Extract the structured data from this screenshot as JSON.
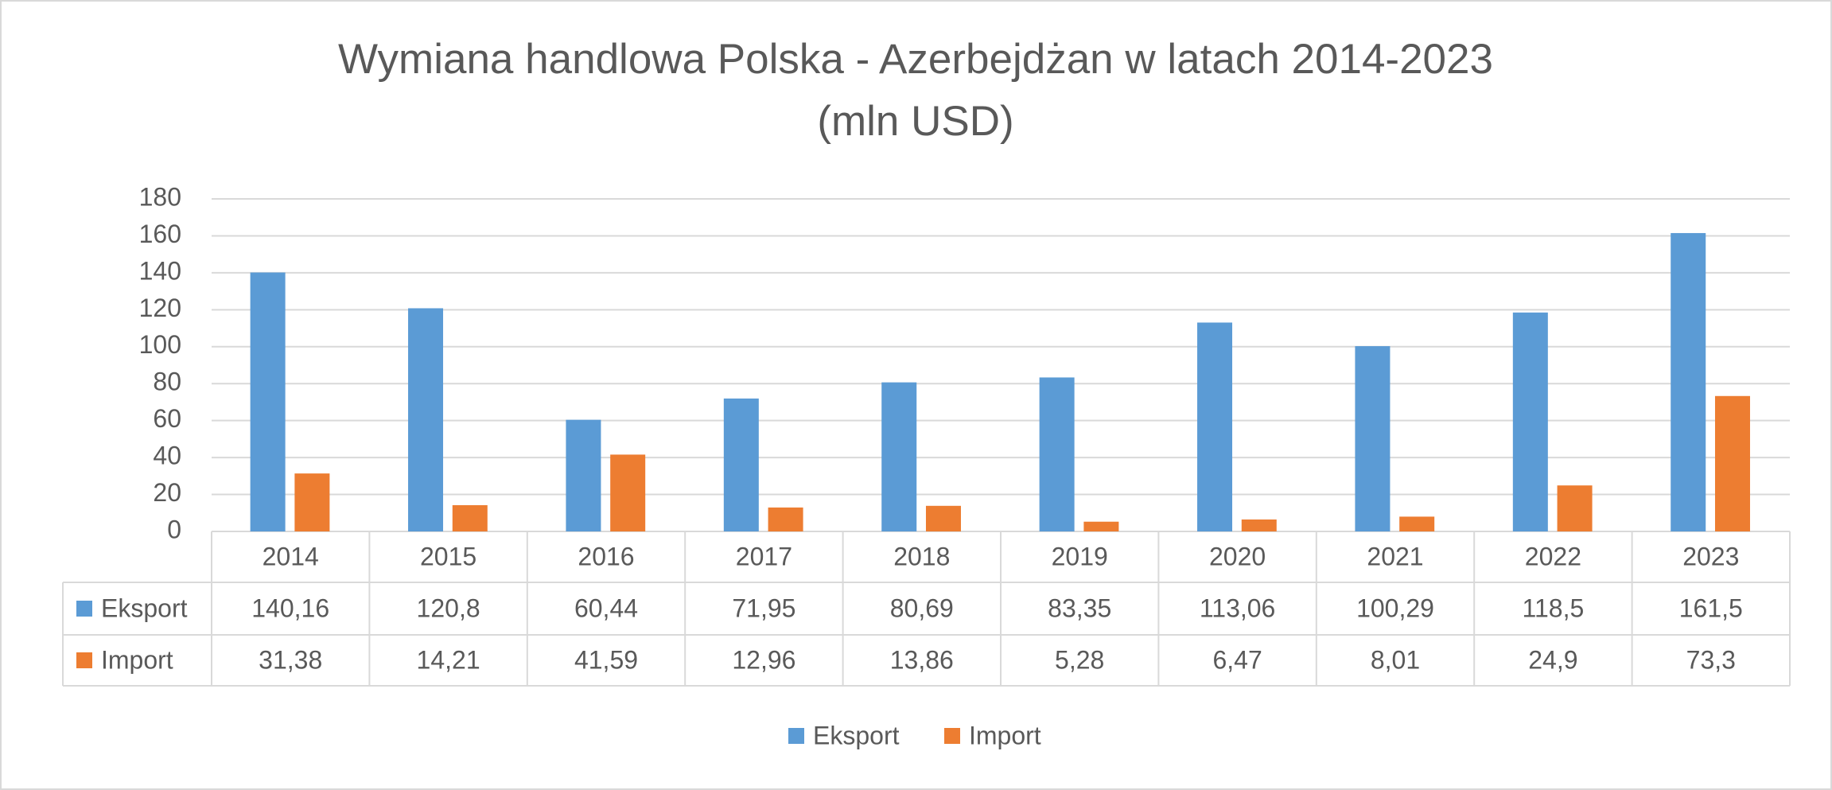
{
  "chart_data": {
    "type": "bar",
    "title": "Wymiana handlowa Polska - Azerbejdżan w latach 2014-2023",
    "subtitle": "(mln USD)",
    "categories": [
      "2014",
      "2015",
      "2016",
      "2017",
      "2018",
      "2019",
      "2020",
      "2021",
      "2022",
      "2023"
    ],
    "series": [
      {
        "name": "Eksport",
        "color": "#5b9bd5",
        "values": [
          140.16,
          120.8,
          60.44,
          71.95,
          80.69,
          83.35,
          113.06,
          100.29,
          118.5,
          161.5
        ],
        "value_labels": [
          "140,16",
          "120,8",
          "60,44",
          "71,95",
          "80,69",
          "83,35",
          "113,06",
          "100,29",
          "118,5",
          "161,5"
        ]
      },
      {
        "name": "Import",
        "color": "#ed7d31",
        "values": [
          31.38,
          14.21,
          41.59,
          12.96,
          13.86,
          5.28,
          6.47,
          8.01,
          24.9,
          73.3
        ],
        "value_labels": [
          "31,38",
          "14,21",
          "41,59",
          "12,96",
          "13,86",
          "5,28",
          "6,47",
          "8,01",
          "24,9",
          "73,3"
        ]
      }
    ],
    "ylim": [
      0,
      180
    ],
    "yticks": [
      0,
      20,
      40,
      60,
      80,
      100,
      120,
      140,
      160,
      180
    ],
    "grid": true,
    "legend": "bottom"
  }
}
